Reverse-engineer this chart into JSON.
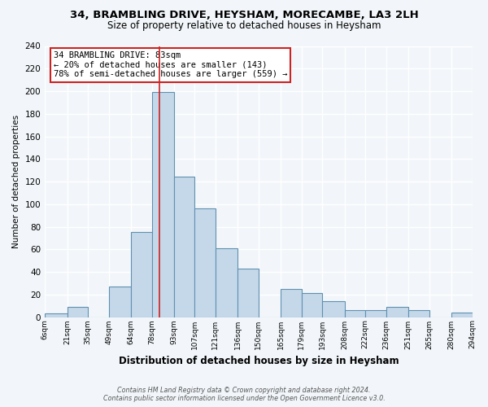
{
  "title_line1": "34, BRAMBLING DRIVE, HEYSHAM, MORECAMBE, LA3 2LH",
  "title_line2": "Size of property relative to detached houses in Heysham",
  "xlabel": "Distribution of detached houses by size in Heysham",
  "ylabel": "Number of detached properties",
  "bar_values": [
    3,
    9,
    0,
    27,
    75,
    199,
    124,
    96,
    61,
    43,
    0,
    25,
    21,
    14,
    6,
    6,
    9,
    6,
    0,
    4
  ],
  "bin_edges": [
    6,
    21,
    35,
    49,
    64,
    78,
    93,
    107,
    121,
    136,
    150,
    165,
    179,
    193,
    208,
    222,
    236,
    251,
    265,
    280,
    294
  ],
  "tick_labels": [
    "6sqm",
    "21sqm",
    "35sqm",
    "49sqm",
    "64sqm",
    "78sqm",
    "93sqm",
    "107sqm",
    "121sqm",
    "136sqm",
    "150sqm",
    "165sqm",
    "179sqm",
    "193sqm",
    "208sqm",
    "222sqm",
    "236sqm",
    "251sqm",
    "265sqm",
    "280sqm",
    "294sqm"
  ],
  "bar_color": "#c5d8ea",
  "bar_edge_color": "#6090b0",
  "vline_x": 83,
  "vline_color": "#cc2222",
  "annotation_title": "34 BRAMBLING DRIVE: 83sqm",
  "annotation_line2": "← 20% of detached houses are smaller (143)",
  "annotation_line3": "78% of semi-detached houses are larger (559) →",
  "annotation_box_edge": "#cc2222",
  "ylim": [
    0,
    240
  ],
  "yticks": [
    0,
    20,
    40,
    60,
    80,
    100,
    120,
    140,
    160,
    180,
    200,
    220,
    240
  ],
  "footer_line1": "Contains HM Land Registry data © Crown copyright and database right 2024.",
  "footer_line2": "Contains public sector information licensed under the Open Government Licence v3.0.",
  "bg_color": "#f2f6fa",
  "plot_bg_color": "#f2f6fa"
}
